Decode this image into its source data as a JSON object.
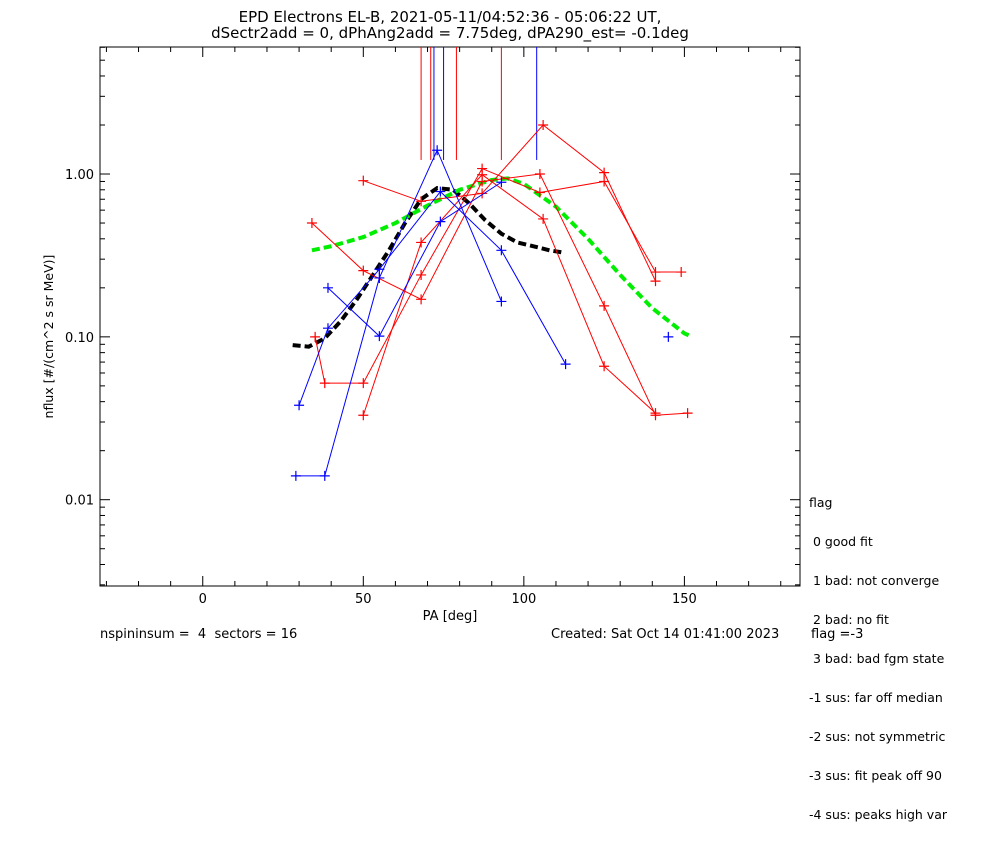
{
  "header": {
    "title_line1": "EPD Electrons EL-B, 2021-05-11/04:52:36 - 05:06:22 UT,",
    "title_line2": "dSectr2add = 0, dPhAng2add = 7.75deg, dPA290_est=  -0.1deg"
  },
  "legend": {
    "title": "flag",
    "items": [
      " 0 good fit",
      " 1 bad: not converge",
      " 2 bad: no fit",
      " 3 bad: bad fgm state",
      "-1 sus: far off median",
      "-2 sus: not symmetric",
      "-3 sus: fit peak off 90",
      "-4 sus: peaks high var"
    ]
  },
  "footer": {
    "left": "nspininsum =  4  sectors = 16",
    "created": "Created: Sat Oct 14 01:41:00 2023",
    "flag": "flag =-3"
  },
  "chart_data": {
    "type": "line",
    "xlabel": "PA [deg]",
    "ylabel": "nflux [#/(cm^2 s sr MeV)]",
    "xlim": [
      -32,
      186
    ],
    "ylim_log10": [
      -2.53,
      0.78
    ],
    "yscale": "log",
    "x_ticks": [
      0,
      50,
      100,
      150
    ],
    "x_ticklabels": [
      "0",
      "50",
      "100",
      "150"
    ],
    "y_ticks": [
      0.01,
      0.1,
      1.0
    ],
    "y_ticklabels": [
      "0.01",
      "0.10",
      "1.00"
    ],
    "colors": {
      "red": "#ff0000",
      "blue": "#0000ff",
      "green": "#00ee00",
      "black": "#000000"
    },
    "series": [
      {
        "color": "red",
        "points": [
          [
            35,
            0.1
          ],
          [
            38,
            0.052
          ],
          [
            50,
            0.052
          ],
          [
            68,
            0.24
          ],
          [
            87,
            1.08
          ],
          [
            105,
            0.77
          ],
          [
            125,
            0.9
          ],
          [
            141,
            0.25
          ],
          [
            149,
            0.25
          ]
        ]
      },
      {
        "color": "red",
        "points": [
          [
            34,
            0.5
          ],
          [
            50,
            0.255
          ],
          [
            68,
            0.17
          ],
          [
            87,
            0.9
          ],
          [
            105,
            1.0
          ],
          [
            125,
            0.155
          ],
          [
            141,
            0.033
          ],
          [
            151,
            0.034
          ]
        ]
      },
      {
        "color": "red",
        "points": [
          [
            50,
            0.91
          ],
          [
            68,
            0.68
          ],
          [
            87,
            0.76
          ],
          [
            106,
            2.0
          ],
          [
            125,
            1.02
          ],
          [
            141,
            0.22
          ]
        ]
      },
      {
        "color": "red",
        "points": [
          [
            50,
            0.033
          ],
          [
            68,
            0.38
          ],
          [
            87,
            0.99
          ],
          [
            106,
            0.53
          ],
          [
            125,
            0.066
          ],
          [
            141,
            0.034
          ]
        ]
      },
      {
        "color": "blue",
        "points": [
          [
            29,
            0.014
          ],
          [
            38,
            0.014
          ],
          [
            55,
            0.23
          ],
          [
            73,
            1.4
          ],
          [
            93,
            0.165
          ]
        ]
      },
      {
        "color": "blue",
        "points": [
          [
            30,
            0.038
          ],
          [
            39,
            0.113
          ],
          [
            55,
            0.26
          ],
          [
            74,
            0.78
          ],
          [
            93,
            0.34
          ],
          [
            113,
            0.068
          ]
        ]
      },
      {
        "color": "blue",
        "points": [
          [
            39,
            0.2
          ],
          [
            55,
            0.101
          ],
          [
            74,
            0.51
          ],
          [
            93,
            0.89
          ]
        ]
      },
      {
        "color": "blue",
        "points": [
          [
            145,
            0.1
          ]
        ]
      }
    ],
    "fits": [
      {
        "color": "black",
        "style": "dashed",
        "points": [
          [
            28,
            0.089
          ],
          [
            33,
            0.087
          ],
          [
            38,
            0.098
          ],
          [
            43,
            0.125
          ],
          [
            48,
            0.17
          ],
          [
            53,
            0.24
          ],
          [
            58,
            0.34
          ],
          [
            63,
            0.5
          ],
          [
            68,
            0.7
          ],
          [
            73,
            0.82
          ],
          [
            78,
            0.8
          ],
          [
            83,
            0.66
          ],
          [
            88,
            0.52
          ],
          [
            93,
            0.43
          ],
          [
            98,
            0.38
          ],
          [
            103,
            0.36
          ],
          [
            108,
            0.34
          ],
          [
            112,
            0.33
          ]
        ]
      },
      {
        "color": "green",
        "style": "dashed",
        "points": [
          [
            34,
            0.34
          ],
          [
            40,
            0.36
          ],
          [
            50,
            0.41
          ],
          [
            60,
            0.5
          ],
          [
            70,
            0.64
          ],
          [
            80,
            0.8
          ],
          [
            90,
            0.92
          ],
          [
            95,
            0.94
          ],
          [
            100,
            0.87
          ],
          [
            110,
            0.63
          ],
          [
            120,
            0.4
          ],
          [
            130,
            0.24
          ],
          [
            140,
            0.15
          ],
          [
            150,
            0.105
          ],
          [
            152,
            0.101
          ]
        ]
      }
    ],
    "vlines": [
      {
        "color": "red",
        "x": 68,
        "from": 1.22
      },
      {
        "color": "red",
        "x": 71,
        "from": 1.22
      },
      {
        "color": "red",
        "x": 79,
        "from": 1.22
      },
      {
        "color": "red",
        "x": 93,
        "from": 1.22
      },
      {
        "color": "blue",
        "x": 72,
        "from": 1.22
      },
      {
        "color": "blue",
        "x": 75,
        "from": 1.22
      },
      {
        "color": "blue",
        "x": 104,
        "from": 1.22
      }
    ]
  }
}
